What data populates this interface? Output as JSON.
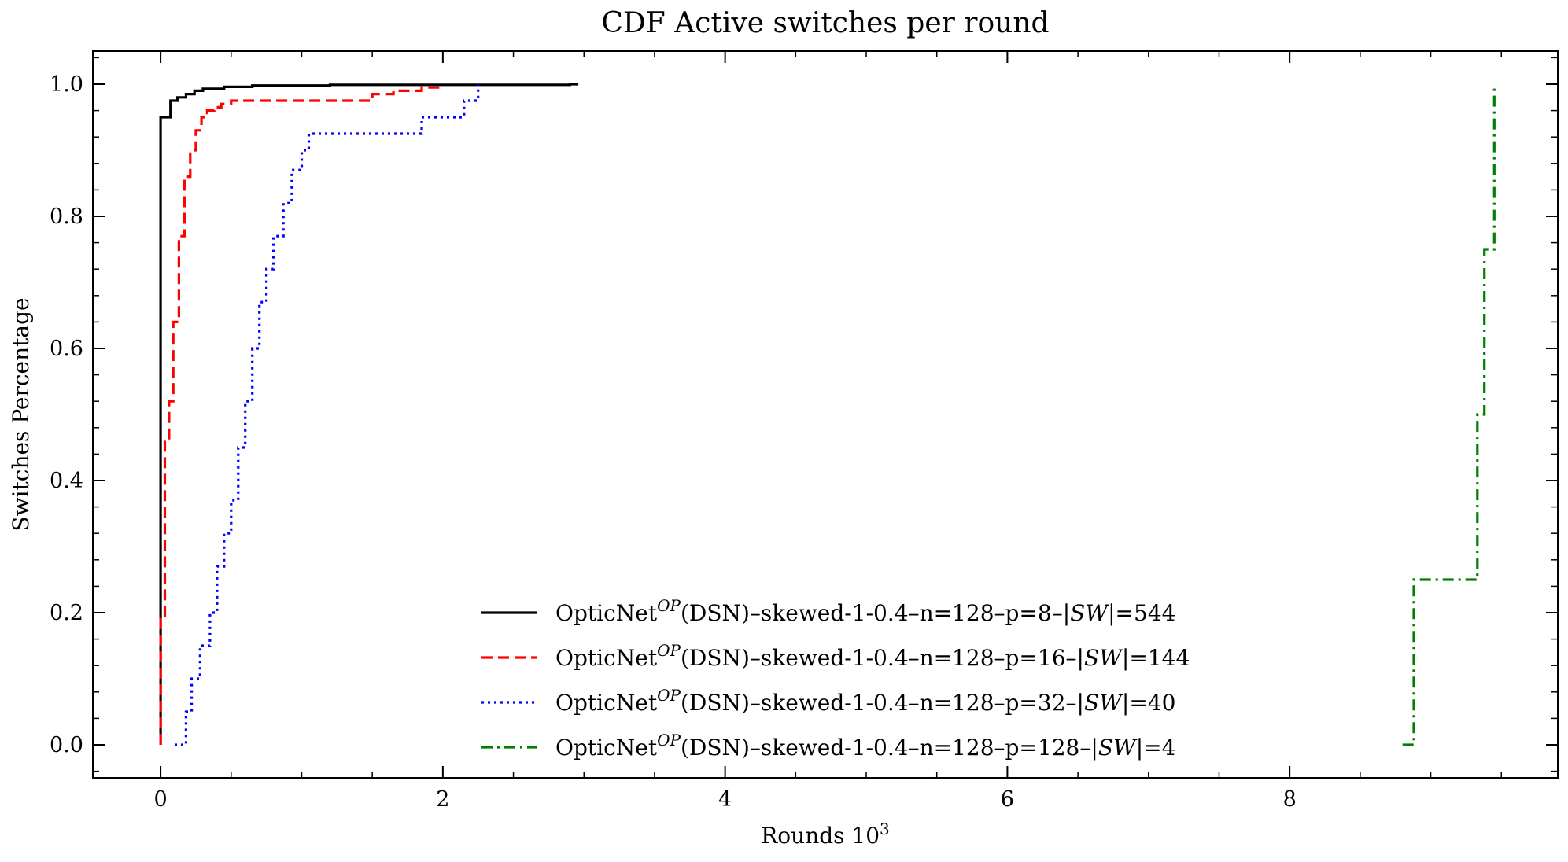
{
  "chart_data": {
    "type": "line",
    "title": "CDF Active switches per round",
    "xlabel": "Rounds 10",
    "xlabel_exponent": "3",
    "ylabel": "Switches Percentage",
    "xlim": [
      -0.48,
      9.9
    ],
    "ylim": [
      -0.05,
      1.05
    ],
    "x_ticks": [
      0,
      2,
      4,
      6,
      8
    ],
    "x_tick_labels": [
      "0",
      "2",
      "4",
      "6",
      "8"
    ],
    "y_ticks": [
      0.0,
      0.2,
      0.4,
      0.6,
      0.8,
      1.0
    ],
    "y_tick_labels": [
      "0.0",
      "0.2",
      "0.4",
      "0.6",
      "0.8",
      "1.0"
    ],
    "grid": false,
    "legend_position": "bottom-center",
    "series": [
      {
        "name_prefix": "OpticNet",
        "name_sup": "OP",
        "name_middle": "(DSN)–skewed-1-0.4–n=128–p=8–|",
        "name_sw": "SW",
        "name_suffix": "|=544",
        "color": "#000000",
        "style": "solid",
        "x": [
          0.0,
          0.0,
          0.07,
          0.07,
          0.12,
          0.12,
          0.18,
          0.18,
          0.24,
          0.24,
          0.3,
          0.3,
          0.45,
          0.45,
          0.65,
          0.65,
          1.2,
          1.2,
          2.9,
          2.9,
          2.96
        ],
        "y": [
          0.0,
          0.95,
          0.95,
          0.975,
          0.975,
          0.98,
          0.98,
          0.985,
          0.985,
          0.99,
          0.99,
          0.993,
          0.993,
          0.996,
          0.996,
          0.998,
          0.998,
          0.999,
          0.999,
          1.0,
          1.0
        ]
      },
      {
        "name_prefix": "OpticNet",
        "name_sup": "OP",
        "name_middle": "(DSN)–skewed-1-0.4–n=128–p=16–|",
        "name_sw": "SW",
        "name_suffix": "|=144",
        "color": "#ff0000",
        "style": "dashed",
        "x": [
          0.0,
          0.0,
          0.03,
          0.03,
          0.06,
          0.06,
          0.09,
          0.09,
          0.13,
          0.13,
          0.17,
          0.17,
          0.21,
          0.21,
          0.25,
          0.25,
          0.29,
          0.29,
          0.33,
          0.33,
          0.38,
          0.38,
          0.43,
          0.43,
          0.5,
          0.5,
          0.6,
          0.6,
          0.8,
          0.8,
          1.5,
          1.5,
          1.65,
          1.65,
          1.85,
          1.85,
          1.98,
          1.98
        ],
        "y": [
          0.0,
          0.19,
          0.19,
          0.46,
          0.46,
          0.52,
          0.52,
          0.64,
          0.64,
          0.77,
          0.77,
          0.86,
          0.86,
          0.9,
          0.9,
          0.93,
          0.93,
          0.95,
          0.95,
          0.96,
          0.96,
          0.965,
          0.965,
          0.97,
          0.97,
          0.975,
          0.975,
          0.975,
          0.975,
          0.975,
          0.975,
          0.985,
          0.985,
          0.99,
          0.99,
          0.995,
          0.995,
          1.0
        ]
      },
      {
        "name_prefix": "OpticNet",
        "name_sup": "OP",
        "name_middle": "(DSN)–skewed-1-0.4–n=128–p=32–|",
        "name_sw": "SW",
        "name_suffix": "|=40",
        "color": "#0000ff",
        "style": "dotted",
        "x": [
          0.1,
          0.18,
          0.18,
          0.22,
          0.22,
          0.28,
          0.28,
          0.35,
          0.35,
          0.4,
          0.4,
          0.45,
          0.45,
          0.5,
          0.5,
          0.55,
          0.55,
          0.6,
          0.6,
          0.65,
          0.65,
          0.7,
          0.7,
          0.75,
          0.75,
          0.8,
          0.8,
          0.87,
          0.87,
          0.93,
          0.93,
          1.0,
          1.0,
          1.05,
          1.05,
          1.1,
          1.1,
          1.85,
          1.85,
          2.15,
          2.15,
          2.25,
          2.25
        ],
        "y": [
          0.0,
          0.0,
          0.05,
          0.05,
          0.1,
          0.1,
          0.15,
          0.15,
          0.2,
          0.2,
          0.27,
          0.27,
          0.32,
          0.32,
          0.37,
          0.37,
          0.45,
          0.45,
          0.52,
          0.52,
          0.6,
          0.6,
          0.67,
          0.67,
          0.72,
          0.72,
          0.77,
          0.77,
          0.82,
          0.82,
          0.87,
          0.87,
          0.9,
          0.9,
          0.925,
          0.925,
          0.925,
          0.925,
          0.95,
          0.95,
          0.975,
          0.975,
          1.0
        ]
      },
      {
        "name_prefix": "OpticNet",
        "name_sup": "OP",
        "name_middle": "(DSN)–skewed-1-0.4–n=128–p=128–|",
        "name_sw": "SW",
        "name_suffix": "|=4",
        "color": "#008000",
        "style": "dashdot",
        "x": [
          8.8,
          8.88,
          8.88,
          9.33,
          9.33,
          9.38,
          9.38,
          9.45,
          9.45
        ],
        "y": [
          0.0,
          0.0,
          0.25,
          0.25,
          0.5,
          0.5,
          0.75,
          0.75,
          1.0
        ]
      }
    ]
  }
}
